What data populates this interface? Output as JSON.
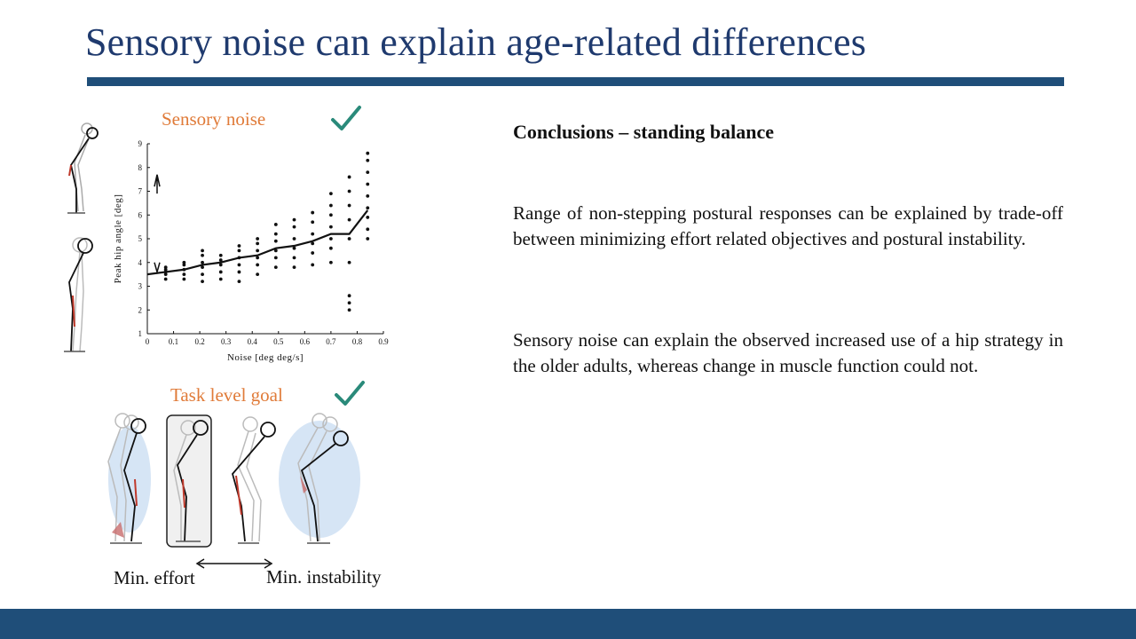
{
  "slide": {
    "title": "Sensory noise can explain age-related differences",
    "colors": {
      "title": "#1f3a6e",
      "bar": "#1f4e79",
      "accent": "#e07b39",
      "check": "#2a8a7a"
    }
  },
  "left_panel": {
    "sensory_noise_label": "Sensory noise",
    "task_goal_label": "Task level goal",
    "min_effort_label": "Min. effort",
    "min_instability_label": "Min. instability",
    "check_icon": "check-icon"
  },
  "chart_data": {
    "type": "scatter",
    "ylabel": "Peak hip angle [deg]",
    "xlabel": "Noise [deg deg/s]",
    "xlim": [
      0,
      0.9
    ],
    "ylim": [
      1,
      9
    ],
    "xticks": [
      "0",
      "0.1",
      "0.2",
      "0.3",
      "0.4",
      "0.5",
      "0.6",
      "0.7",
      "0.8",
      "0.9"
    ],
    "yticks": [
      "1",
      "2",
      "3",
      "4",
      "5",
      "6",
      "7",
      "8",
      "9"
    ],
    "series": [
      {
        "type": "line",
        "x": [
          0,
          0.07,
          0.14,
          0.21,
          0.28,
          0.35,
          0.42,
          0.49,
          0.56,
          0.63,
          0.7,
          0.77,
          0.84
        ],
        "y": [
          3.5,
          3.6,
          3.7,
          3.9,
          4.0,
          4.2,
          4.3,
          4.6,
          4.7,
          4.9,
          5.2,
          5.2,
          6.2
        ]
      },
      {
        "type": "scatter",
        "points": [
          [
            0.07,
            3.3
          ],
          [
            0.07,
            3.5
          ],
          [
            0.07,
            3.6
          ],
          [
            0.07,
            3.7
          ],
          [
            0.07,
            3.8
          ],
          [
            0.14,
            3.3
          ],
          [
            0.14,
            3.5
          ],
          [
            0.14,
            3.7
          ],
          [
            0.14,
            3.9
          ],
          [
            0.14,
            4.0
          ],
          [
            0.21,
            3.2
          ],
          [
            0.21,
            3.5
          ],
          [
            0.21,
            3.8
          ],
          [
            0.21,
            4.0
          ],
          [
            0.21,
            4.3
          ],
          [
            0.21,
            4.5
          ],
          [
            0.28,
            3.3
          ],
          [
            0.28,
            3.6
          ],
          [
            0.28,
            3.9
          ],
          [
            0.28,
            4.1
          ],
          [
            0.28,
            4.3
          ],
          [
            0.35,
            3.2
          ],
          [
            0.35,
            3.6
          ],
          [
            0.35,
            3.9
          ],
          [
            0.35,
            4.2
          ],
          [
            0.35,
            4.5
          ],
          [
            0.35,
            4.7
          ],
          [
            0.42,
            3.5
          ],
          [
            0.42,
            3.9
          ],
          [
            0.42,
            4.2
          ],
          [
            0.42,
            4.5
          ],
          [
            0.42,
            4.8
          ],
          [
            0.42,
            5.0
          ],
          [
            0.49,
            3.8
          ],
          [
            0.49,
            4.2
          ],
          [
            0.49,
            4.5
          ],
          [
            0.49,
            4.9
          ],
          [
            0.49,
            5.2
          ],
          [
            0.49,
            5.6
          ],
          [
            0.56,
            3.8
          ],
          [
            0.56,
            4.2
          ],
          [
            0.56,
            4.6
          ],
          [
            0.56,
            5.0
          ],
          [
            0.56,
            5.5
          ],
          [
            0.56,
            5.8
          ],
          [
            0.63,
            3.9
          ],
          [
            0.63,
            4.4
          ],
          [
            0.63,
            4.8
          ],
          [
            0.63,
            5.2
          ],
          [
            0.63,
            5.7
          ],
          [
            0.63,
            6.1
          ],
          [
            0.7,
            4.0
          ],
          [
            0.7,
            4.6
          ],
          [
            0.7,
            5.0
          ],
          [
            0.7,
            5.5
          ],
          [
            0.7,
            6.0
          ],
          [
            0.7,
            6.4
          ],
          [
            0.7,
            6.9
          ],
          [
            0.77,
            2.0
          ],
          [
            0.77,
            2.3
          ],
          [
            0.77,
            2.6
          ],
          [
            0.77,
            4.0
          ],
          [
            0.77,
            5.0
          ],
          [
            0.77,
            5.8
          ],
          [
            0.77,
            6.4
          ],
          [
            0.77,
            7.0
          ],
          [
            0.77,
            7.6
          ],
          [
            0.84,
            5.0
          ],
          [
            0.84,
            5.4
          ],
          [
            0.84,
            5.9
          ],
          [
            0.84,
            6.3
          ],
          [
            0.84,
            6.8
          ],
          [
            0.84,
            7.3
          ],
          [
            0.84,
            7.8
          ],
          [
            0.84,
            8.3
          ],
          [
            0.84,
            8.6
          ]
        ]
      }
    ],
    "grid": false,
    "legend": "none"
  },
  "conclusions": {
    "heading": "Conclusions – standing balance",
    "paragraph1": "Range of non-stepping postural responses can be explained by trade-off between minimizing effort related objectives and postural instability.",
    "paragraph2": "Sensory noise can explain the observed increased use of a hip strategy in the older adults, whereas change in muscle function could not."
  }
}
